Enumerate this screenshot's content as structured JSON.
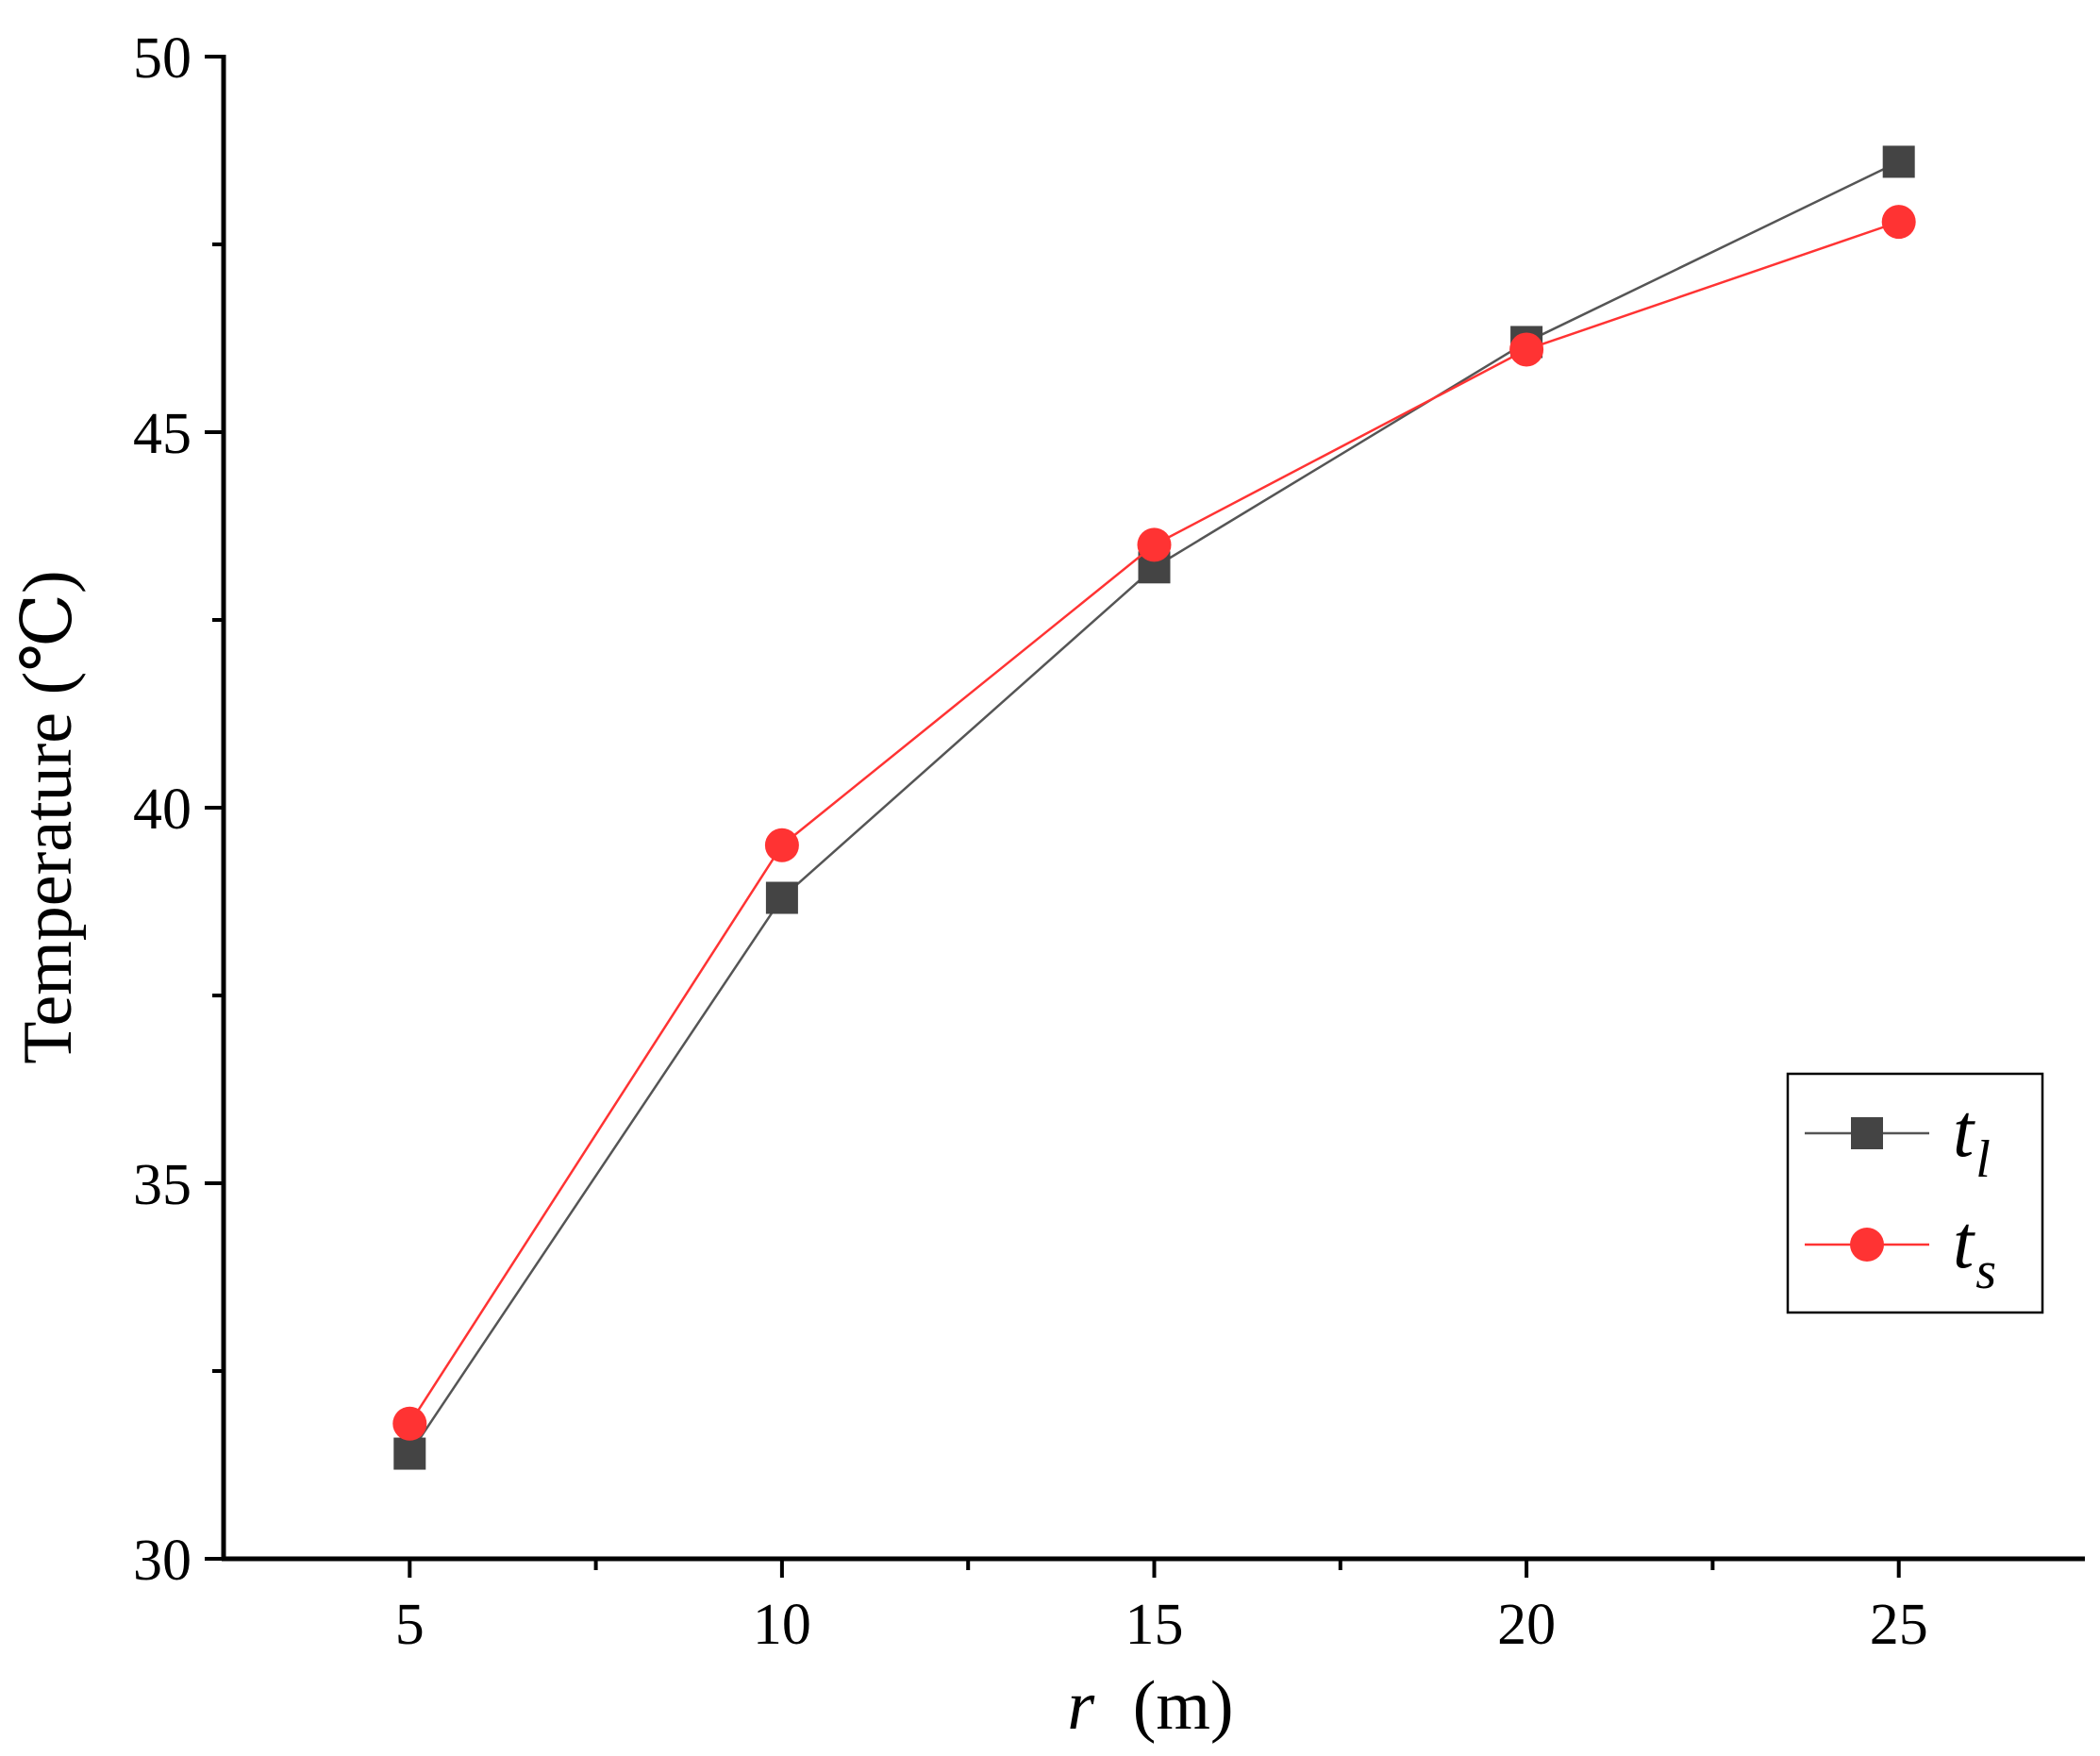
{
  "chart_data": {
    "type": "line",
    "xlabel": {
      "variable": "r",
      "unit": "(m)"
    },
    "ylabel": "Temperature (℃)",
    "xlim": [
      2.5,
      27.5
    ],
    "ylim": [
      30,
      50
    ],
    "x_ticks": [
      5,
      10,
      15,
      20,
      25
    ],
    "y_ticks": [
      30,
      35,
      40,
      45,
      50
    ],
    "x_minor_ticks": [
      7.5,
      12.5,
      17.5,
      22.5
    ],
    "y_minor_ticks": [
      32.5,
      37.5,
      42.5,
      47.5
    ],
    "x": [
      5,
      10,
      15,
      20,
      25
    ],
    "series": [
      {
        "name": "t_l",
        "label_main": "t",
        "label_sub": "l",
        "marker": "square",
        "color": "#444444",
        "line_color": "#555555",
        "values": [
          31.4,
          38.8,
          43.2,
          46.2,
          48.6
        ]
      },
      {
        "name": "t_s",
        "label_main": "t",
        "label_sub": "s",
        "marker": "circle",
        "color": "#ff3333",
        "line_color": "#ff3333",
        "values": [
          31.8,
          39.5,
          43.5,
          46.1,
          47.8
        ]
      }
    ],
    "grid": false,
    "legend_position": "right"
  }
}
